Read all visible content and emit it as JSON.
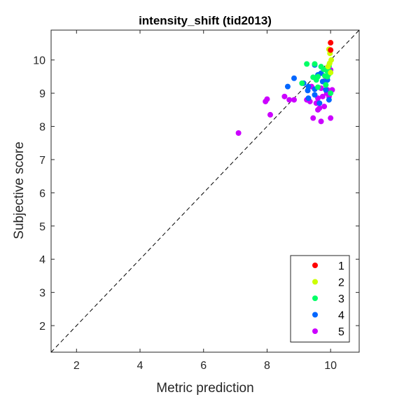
{
  "chart_data": {
    "type": "scatter",
    "title": "intensity_shift (tid2013)",
    "xlabel": "Metric prediction",
    "ylabel": "Subjective score",
    "xlim": [
      1.2,
      10.9
    ],
    "ylim": [
      1.2,
      10.9
    ],
    "xticks": [
      2,
      4,
      6,
      8,
      10
    ],
    "yticks": [
      2,
      3,
      4,
      5,
      6,
      7,
      8,
      9,
      10
    ],
    "grid": false,
    "reference_line": "y = x (dashed)",
    "legend_position": "bottom-right",
    "series": [
      {
        "name": "1",
        "color": "#ff0000",
        "points": [
          [
            10.0,
            10.52
          ],
          [
            10.0,
            10.3
          ]
        ]
      },
      {
        "name": "2",
        "color": "#ccff00",
        "points": [
          [
            9.95,
            10.32
          ],
          [
            9.98,
            10.2
          ],
          [
            10.02,
            10.0
          ],
          [
            9.97,
            9.9
          ],
          [
            9.92,
            9.8
          ],
          [
            10.0,
            9.62
          ]
        ]
      },
      {
        "name": "3",
        "color": "#00ff66",
        "points": [
          [
            9.25,
            9.88
          ],
          [
            9.5,
            9.88
          ],
          [
            9.7,
            9.8
          ],
          [
            9.78,
            9.72
          ],
          [
            9.88,
            9.68
          ],
          [
            9.95,
            9.82
          ],
          [
            9.98,
            9.65
          ],
          [
            9.82,
            9.52
          ],
          [
            9.6,
            9.5
          ],
          [
            9.45,
            9.48
          ],
          [
            9.55,
            9.4
          ],
          [
            9.1,
            9.3
          ],
          [
            9.9,
            9.5
          ],
          [
            9.85,
            9.25
          ],
          [
            9.6,
            9.18
          ],
          [
            10.0,
            9.0
          ],
          [
            9.95,
            9.58
          ]
        ]
      },
      {
        "name": "4",
        "color": "#0066ff",
        "points": [
          [
            9.5,
            9.85
          ],
          [
            9.95,
            9.65
          ],
          [
            9.7,
            9.6
          ],
          [
            9.6,
            9.55
          ],
          [
            9.55,
            9.45
          ],
          [
            8.85,
            9.45
          ],
          [
            9.15,
            9.3
          ],
          [
            9.75,
            9.35
          ],
          [
            9.3,
            9.2
          ],
          [
            8.65,
            9.2
          ],
          [
            9.5,
            9.12
          ],
          [
            9.28,
            9.08
          ],
          [
            9.85,
            9.1
          ],
          [
            9.3,
            8.85
          ],
          [
            9.5,
            8.95
          ],
          [
            9.95,
            8.8
          ],
          [
            9.65,
            8.7
          ],
          [
            9.9,
            9.4
          ]
        ]
      },
      {
        "name": "5",
        "color": "#cc00ff",
        "points": [
          [
            10.0,
            9.7
          ],
          [
            9.85,
            9.4
          ],
          [
            9.4,
            9.2
          ],
          [
            9.7,
            9.15
          ],
          [
            9.9,
            9.1
          ],
          [
            10.05,
            9.1
          ],
          [
            9.88,
            9.0
          ],
          [
            8.55,
            8.9
          ],
          [
            9.6,
            8.85
          ],
          [
            9.75,
            8.9
          ],
          [
            9.95,
            8.9
          ],
          [
            8.7,
            8.8
          ],
          [
            8.85,
            8.8
          ],
          [
            9.25,
            8.8
          ],
          [
            9.35,
            8.75
          ],
          [
            7.95,
            8.75
          ],
          [
            9.55,
            8.7
          ],
          [
            9.65,
            8.55
          ],
          [
            9.8,
            8.6
          ],
          [
            9.6,
            8.5
          ],
          [
            8.1,
            8.35
          ],
          [
            9.45,
            8.25
          ],
          [
            10.0,
            8.25
          ],
          [
            9.7,
            8.15
          ],
          [
            7.1,
            7.8
          ],
          [
            8.0,
            8.82
          ]
        ]
      }
    ]
  }
}
